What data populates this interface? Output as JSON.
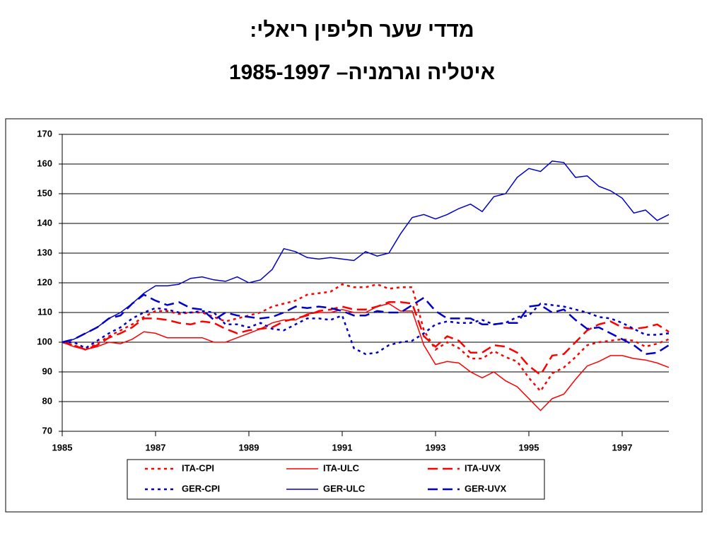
{
  "chart_data": {
    "type": "line",
    "title": "מדדי שער חליפין ריאלי:",
    "subtitle": "איטליה וגרמניה– 1985-1997",
    "x": [
      1985,
      1985.25,
      1985.5,
      1985.75,
      1986,
      1986.25,
      1986.5,
      1986.75,
      1987,
      1987.25,
      1987.5,
      1987.75,
      1988,
      1988.25,
      1988.5,
      1988.75,
      1989,
      1989.25,
      1989.5,
      1989.75,
      1990,
      1990.25,
      1990.5,
      1990.75,
      1991,
      1991.25,
      1991.5,
      1991.75,
      1992,
      1992.25,
      1992.5,
      1992.75,
      1993,
      1993.25,
      1993.5,
      1993.75,
      1994,
      1994.25,
      1994.5,
      1994.75,
      1995,
      1995.25,
      1995.5,
      1995.75,
      1996,
      1996.25,
      1996.5,
      1996.75,
      1997,
      1997.25,
      1997.5,
      1997.75,
      1998
    ],
    "xlim": [
      1985,
      1998
    ],
    "xticks": [
      1985,
      1987,
      1989,
      1991,
      1993,
      1995,
      1997
    ],
    "ylim": [
      70,
      170
    ],
    "yticks": [
      70,
      80,
      90,
      100,
      110,
      120,
      130,
      140,
      150,
      160,
      170
    ],
    "grid": true,
    "series": [
      {
        "name": "ITA-CPI",
        "color": "#ff0000",
        "style": "dotted",
        "values": [
          100,
          99,
          97.5,
          99.5,
          102,
          104,
          106,
          108.5,
          110.5,
          110.5,
          109.5,
          110,
          110,
          108.5,
          107,
          108,
          109,
          110,
          112,
          113,
          114,
          116,
          116.5,
          117,
          119.5,
          118.5,
          118.5,
          119.5,
          118,
          118.5,
          118.5,
          104,
          97.5,
          100,
          98,
          94.5,
          94.5,
          97,
          95,
          93.5,
          88,
          83.5,
          89.5,
          91.5,
          95,
          99,
          100,
          100.5,
          101,
          100.5,
          98.5,
          99.5,
          101
        ]
      },
      {
        "name": "ITA-ULC",
        "color": "#ff0000",
        "style": "solid",
        "values": [
          100,
          98.5,
          97.5,
          98.5,
          100,
          99.5,
          101,
          103.5,
          103,
          101.5,
          101.5,
          101.5,
          101.5,
          100,
          100,
          101.5,
          103,
          104.5,
          106.5,
          107.5,
          107.5,
          109.5,
          110,
          110,
          111,
          110,
          110,
          112,
          113,
          110.5,
          110.5,
          99,
          92.5,
          93.5,
          93,
          90,
          88,
          90,
          87,
          85,
          81,
          77,
          81,
          82.5,
          87.5,
          92,
          93.5,
          95.5,
          95.5,
          94.5,
          94,
          93,
          91.5
        ]
      },
      {
        "name": "ITA-UVX",
        "color": "#ff0000",
        "style": "dashed",
        "values": [
          100,
          99,
          97.5,
          99,
          101.5,
          103,
          105,
          108,
          108,
          107.5,
          106.5,
          106,
          107,
          106.5,
          104.5,
          103,
          104,
          104.5,
          105,
          107,
          108,
          109,
          110.5,
          111,
          112,
          111,
          111,
          112,
          113.5,
          113.5,
          113,
          102,
          98.5,
          102,
          100.5,
          96.5,
          96.5,
          99,
          98.5,
          96.5,
          92,
          89,
          95.5,
          96,
          100,
          104,
          106,
          107,
          105,
          104.5,
          105,
          106,
          103.5
        ]
      },
      {
        "name": "GER-CPI",
        "color": "#0000cc",
        "style": "dotted",
        "values": [
          100,
          100,
          98,
          100.5,
          103,
          105,
          108,
          110,
          111.5,
          111,
          110,
          110,
          110.5,
          110,
          106,
          106,
          105,
          106.5,
          104.5,
          104,
          106,
          108,
          108,
          107.5,
          109,
          98,
          96,
          96.5,
          99,
          100,
          100.5,
          103,
          106,
          107,
          106.5,
          106.5,
          107.5,
          106,
          106.5,
          108.5,
          109,
          113,
          112.5,
          112,
          111,
          110,
          108.5,
          108,
          106.5,
          104.5,
          102.5,
          102.5,
          103
        ]
      },
      {
        "name": "GER-ULC",
        "color": "#0000cc",
        "style": "solid",
        "values": [
          100,
          101,
          103,
          105,
          108,
          110,
          113,
          116.5,
          119,
          119,
          119.5,
          121.5,
          122,
          121,
          120.5,
          122,
          120,
          121,
          124.5,
          131.5,
          130.5,
          128.5,
          128,
          128.5,
          128,
          127.5,
          130.5,
          129,
          130,
          136.5,
          142,
          143,
          141.5,
          143,
          145,
          146.5,
          144,
          149,
          150,
          155.5,
          158.5,
          157.5,
          161,
          160.5,
          155.5,
          156,
          152.5,
          151,
          148.5,
          143.5,
          144.5,
          141,
          143
        ]
      },
      {
        "name": "GER-UVX",
        "color": "#0000cc",
        "style": "dashed",
        "values": [
          100,
          101,
          103,
          105,
          108,
          109,
          113,
          116,
          114,
          112.5,
          113.5,
          111.5,
          111,
          107.5,
          110,
          109,
          108.5,
          108,
          108.5,
          110,
          112,
          111.5,
          112,
          111.5,
          110.5,
          109,
          109,
          110.5,
          110,
          110,
          112.5,
          115,
          110.5,
          108,
          108,
          108,
          106,
          106,
          106.5,
          106.5,
          112,
          112.5,
          110,
          111,
          107.5,
          104.5,
          105,
          103,
          101,
          99,
          96,
          96.5,
          99
        ]
      }
    ]
  }
}
